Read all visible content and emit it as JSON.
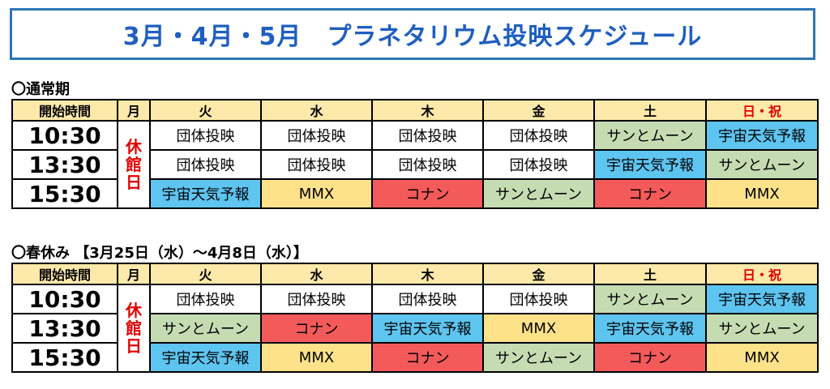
{
  "title": "3月・4月・5月　プラネタリウム投映スケジュール",
  "colors": {
    "団体投映": "#ffffff",
    "サンとムーン": "#c5dcb3",
    "宇宙天気予報": "#5ec4f0",
    "MMX": "#fde28a",
    "コナン": "#f45a5a",
    "accent": "#2e75b6",
    "sunday": "#e00000"
  },
  "headers": [
    "開始時間",
    "月",
    "火",
    "水",
    "木",
    "金",
    "土",
    "日・祝"
  ],
  "closed_label": "休館日",
  "sections": [
    {
      "label": "〇通常期",
      "rows": [
        {
          "time": "10:30",
          "cells": [
            "団体投映",
            "団体投映",
            "団体投映",
            "団体投映",
            "サンとムーン",
            "宇宙天気予報"
          ]
        },
        {
          "time": "13:30",
          "cells": [
            "団体投映",
            "団体投映",
            "団体投映",
            "団体投映",
            "宇宙天気予報",
            "サンとムーン"
          ]
        },
        {
          "time": "15:30",
          "cells": [
            "宇宙天気予報",
            "MMX",
            "コナン",
            "サンとムーン",
            "コナン",
            "MMX"
          ]
        }
      ]
    },
    {
      "label": "〇春休み 【3月25日（水）～4月8日（水）】",
      "rows": [
        {
          "time": "10:30",
          "cells": [
            "団体投映",
            "団体投映",
            "団体投映",
            "団体投映",
            "サンとムーン",
            "宇宙天気予報"
          ]
        },
        {
          "time": "13:30",
          "cells": [
            "サンとムーン",
            "コナン",
            "宇宙天気予報",
            "MMX",
            "宇宙天気予報",
            "サンとムーン"
          ]
        },
        {
          "time": "15:30",
          "cells": [
            "宇宙天気予報",
            "MMX",
            "コナン",
            "サンとムーン",
            "コナン",
            "MMX"
          ]
        }
      ]
    }
  ]
}
